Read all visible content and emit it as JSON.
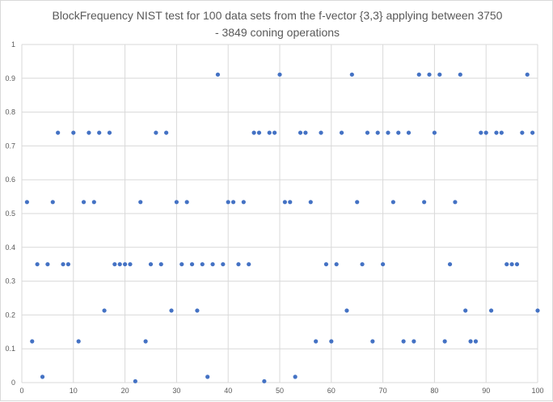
{
  "chart_data": {
    "type": "scatter",
    "title": "BlockFrequency NIST test for 100 data sets from the f-vector {3,3} applying between 3750 - 3849 coning operations",
    "xlabel": "",
    "ylabel": "",
    "xlim": [
      0,
      100
    ],
    "ylim": [
      0,
      1
    ],
    "xticks": [
      0,
      10,
      20,
      30,
      40,
      50,
      60,
      70,
      80,
      90,
      100
    ],
    "yticks": [
      0,
      0.1,
      0.2,
      0.3,
      0.4,
      0.5,
      0.6,
      0.7,
      0.8,
      0.9,
      1
    ],
    "grid": true,
    "legend": "none",
    "marker_color": "#4472c4",
    "series": [
      {
        "x": [
          1,
          2,
          3,
          4,
          5,
          6,
          7,
          8,
          9,
          10,
          11,
          12,
          13,
          14,
          15,
          16,
          17,
          18,
          19,
          20,
          21,
          22,
          23,
          24,
          25,
          26,
          27,
          28,
          29,
          30,
          31,
          32,
          33,
          34,
          35,
          36,
          37,
          38,
          39,
          40,
          41,
          42,
          43,
          44,
          45,
          46,
          47,
          48,
          49,
          50,
          51,
          52,
          53,
          54,
          55,
          56,
          57,
          58,
          59,
          60,
          61,
          62,
          63,
          64,
          65,
          66,
          67,
          68,
          69,
          70,
          71,
          72,
          73,
          74,
          75,
          76,
          77,
          78,
          79,
          80,
          81,
          82,
          83,
          84,
          85,
          86,
          87,
          88,
          89,
          90,
          91,
          92,
          93,
          94,
          95,
          96,
          97,
          98,
          99,
          100
        ],
        "y": [
          0.534,
          0.122,
          0.35,
          0.017,
          0.35,
          0.534,
          0.739,
          0.35,
          0.35,
          0.739,
          0.122,
          0.534,
          0.739,
          0.534,
          0.739,
          0.213,
          0.739,
          0.35,
          0.35,
          0.35,
          0.35,
          0.004,
          0.534,
          0.122,
          0.35,
          0.739,
          0.35,
          0.739,
          0.213,
          0.534,
          0.35,
          0.534,
          0.35,
          0.213,
          0.35,
          0.017,
          0.35,
          0.911,
          0.35,
          0.534,
          0.534,
          0.35,
          0.534,
          0.35,
          0.739,
          0.739,
          0.004,
          0.739,
          0.739,
          0.911,
          0.534,
          0.534,
          0.017,
          0.739,
          0.739,
          0.534,
          0.122,
          0.739,
          0.35,
          0.122,
          0.35,
          0.739,
          0.213,
          0.911,
          0.534,
          0.35,
          0.739,
          0.122,
          0.739,
          0.35,
          0.739,
          0.534,
          0.739,
          0.122,
          0.739,
          0.122,
          0.911,
          0.534,
          0.911,
          0.739,
          0.911,
          0.122,
          0.35,
          0.534,
          0.911,
          0.213,
          0.122,
          0.122,
          0.739,
          0.739,
          0.213,
          0.739,
          0.739,
          0.35,
          0.35,
          0.35,
          0.739,
          0.911,
          0.739,
          0.213
        ]
      }
    ]
  }
}
